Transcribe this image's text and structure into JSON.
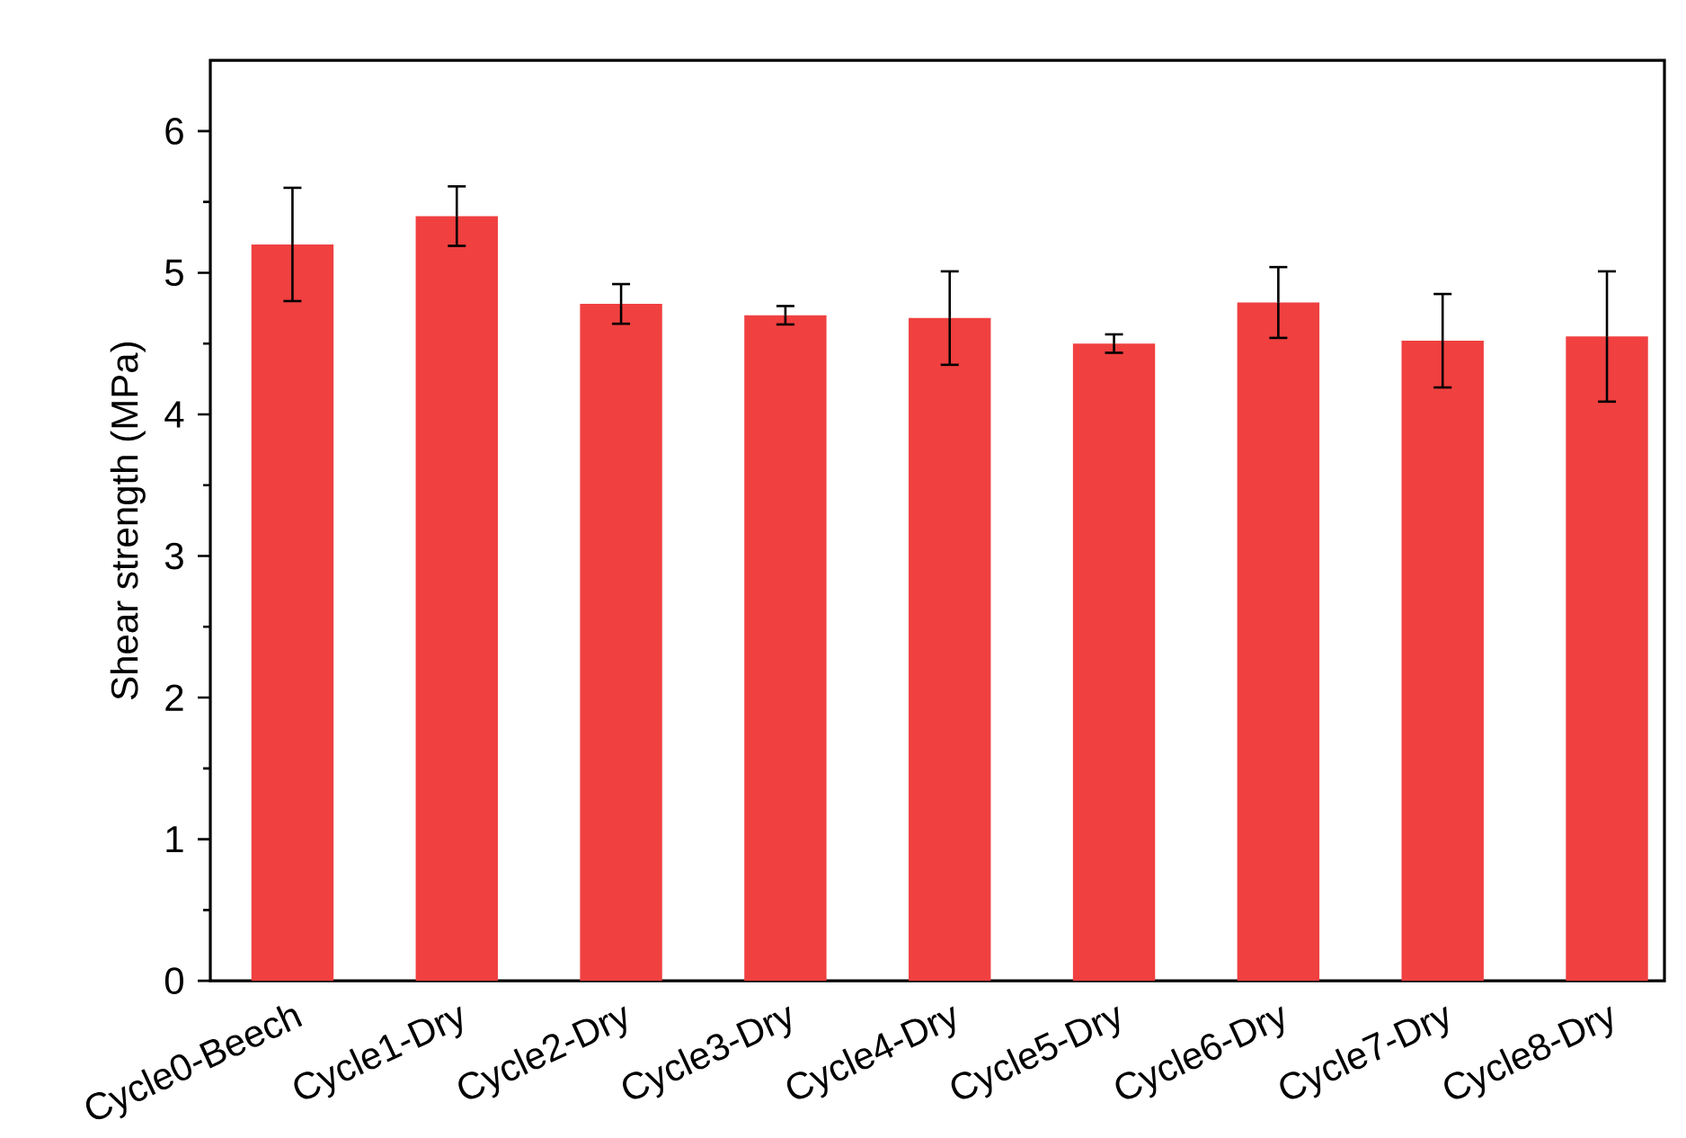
{
  "chart_data": {
    "type": "bar",
    "ylabel": "Shear strength (MPa)",
    "categories": [
      "Cycle0-Beech",
      "Cycle1-Dry",
      "Cycle2-Dry",
      "Cycle3-Dry",
      "Cycle4-Dry",
      "Cycle5-Dry",
      "Cycle6-Dry",
      "Cycle7-Dry",
      "Cycle8-Dry"
    ],
    "values": [
      5.2,
      5.4,
      4.78,
      4.7,
      4.68,
      4.5,
      4.79,
      4.52,
      4.55
    ],
    "errors": [
      0.4,
      0.21,
      0.14,
      0.065,
      0.33,
      0.065,
      0.25,
      0.33,
      0.46
    ],
    "color": "#f04040",
    "ylim": [
      0,
      6.5
    ],
    "yticks": [
      0,
      1,
      2,
      3,
      4,
      5,
      6
    ],
    "grid": false
  }
}
